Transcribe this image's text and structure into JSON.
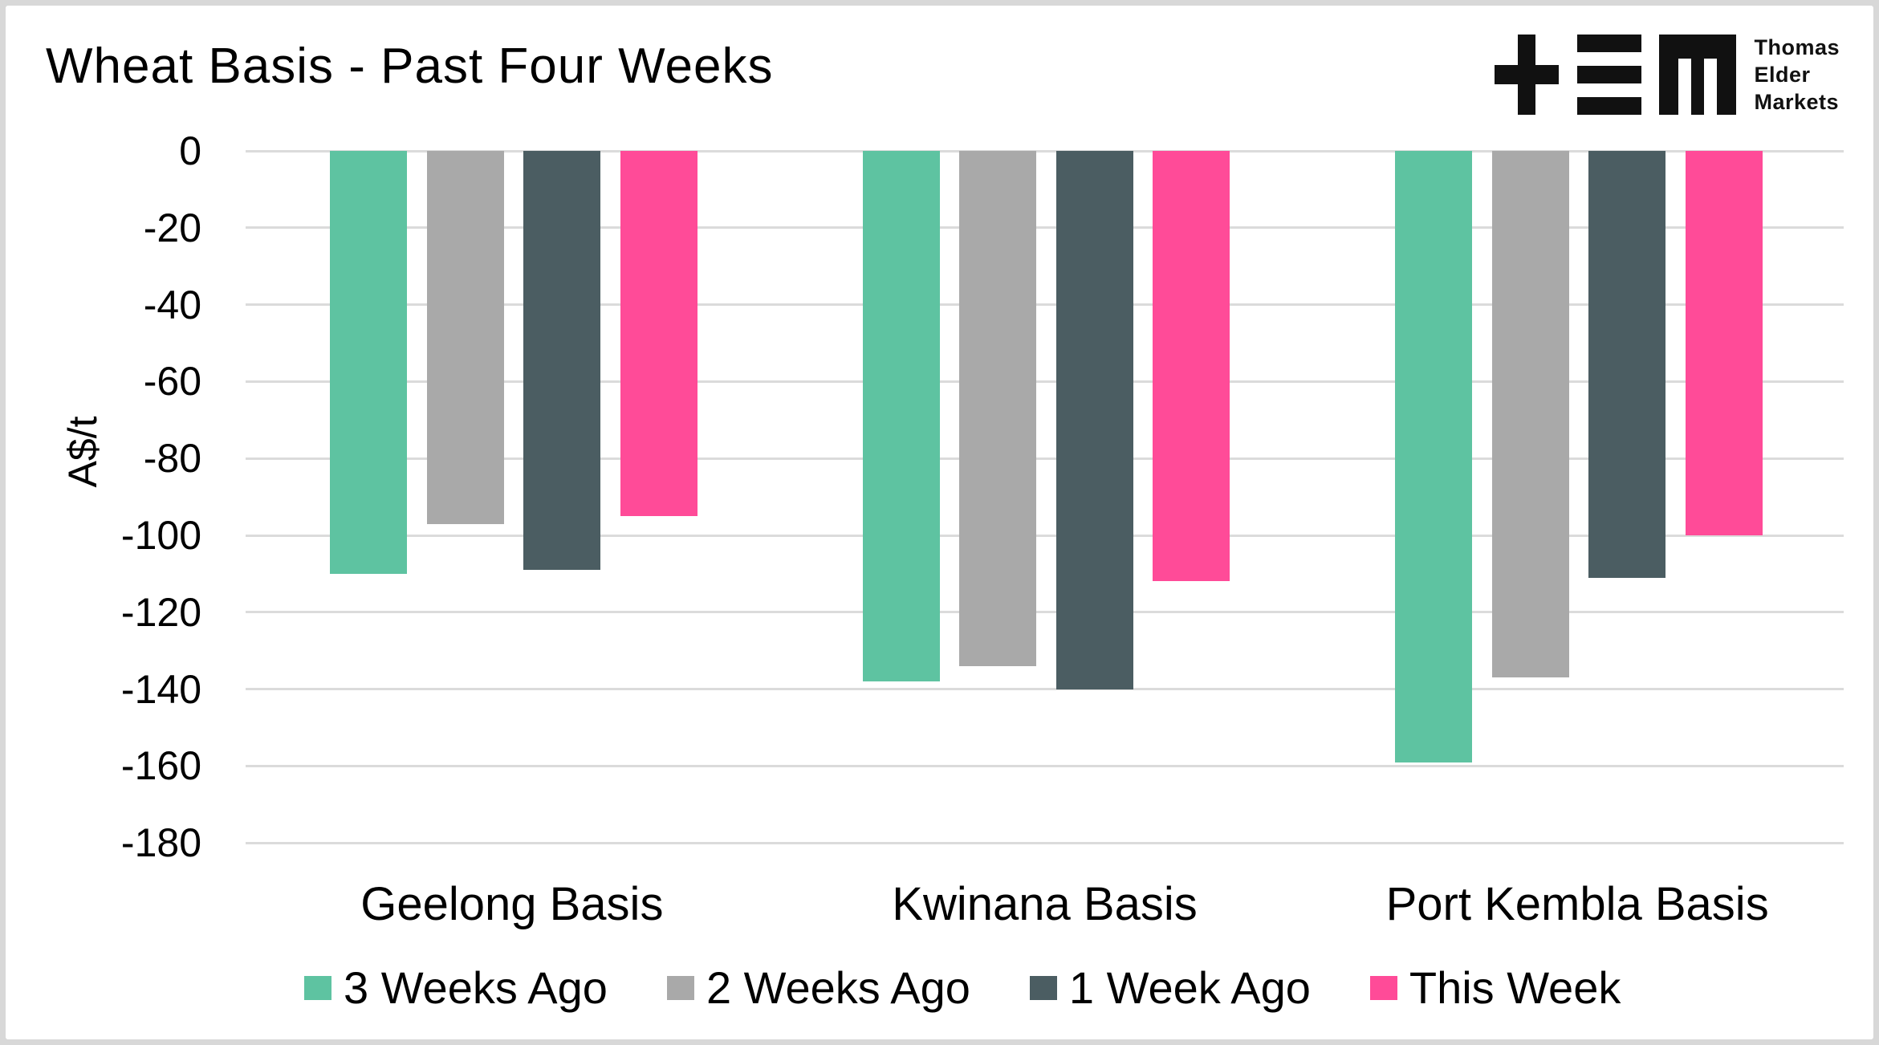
{
  "header": {
    "title": "Wheat Basis - Past Four Weeks"
  },
  "logo": {
    "name": "Thomas Elder Markets",
    "lines": [
      "Thomas",
      "Elder",
      "Markets"
    ]
  },
  "chart_data": {
    "type": "bar",
    "title": "Wheat Basis - Past Four Weeks",
    "xlabel": "",
    "ylabel": "A$/t",
    "categories": [
      "Geelong Basis",
      "Kwinana Basis",
      "Port Kembla Basis"
    ],
    "series": [
      {
        "name": "3 Weeks Ago",
        "color": "#5EC3A1",
        "values": [
          -110,
          -138,
          -159
        ]
      },
      {
        "name": "2 Weeks Ago",
        "color": "#A9A9A9",
        "values": [
          -97,
          -134,
          -137
        ]
      },
      {
        "name": "1 Week Ago",
        "color": "#4B5D62",
        "values": [
          -109,
          -140,
          -111
        ]
      },
      {
        "name": "This Week",
        "color": "#FF4B98",
        "values": [
          -95,
          -112,
          -100
        ]
      }
    ],
    "ylim": [
      -180,
      0
    ],
    "yticks": [
      0,
      -20,
      -40,
      -60,
      -80,
      -100,
      -120,
      -140,
      -160,
      -180
    ],
    "grid": true,
    "legend_position": "bottom",
    "colors": {
      "grid": "#dbdbdb",
      "text": "#000000",
      "background": "#ffffff"
    }
  }
}
